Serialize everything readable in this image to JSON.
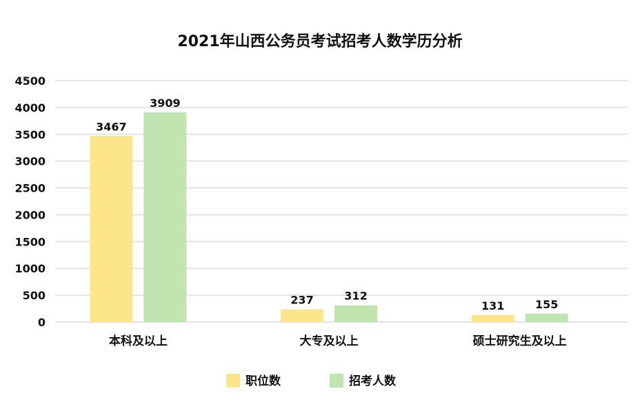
{
  "chart_data": {
    "type": "bar",
    "title": "2021年山西公务员考试招考人数学历分析",
    "categories": [
      "本科及以上",
      "大专及以上",
      "硕士研究生及以上"
    ],
    "series": [
      {
        "name": "职位数",
        "values": [
          3467,
          237,
          131
        ],
        "color": "#fde68a"
      },
      {
        "name": "招考人数",
        "values": [
          3909,
          312,
          155
        ],
        "color": "#c0e5b0"
      }
    ],
    "y_ticks": [
      0,
      500,
      1000,
      1500,
      2000,
      2500,
      3000,
      3500,
      4000,
      4500
    ],
    "ylim": [
      0,
      4500
    ],
    "grid": true,
    "legend_position": "bottom-center",
    "xlabel": "",
    "ylabel": ""
  }
}
